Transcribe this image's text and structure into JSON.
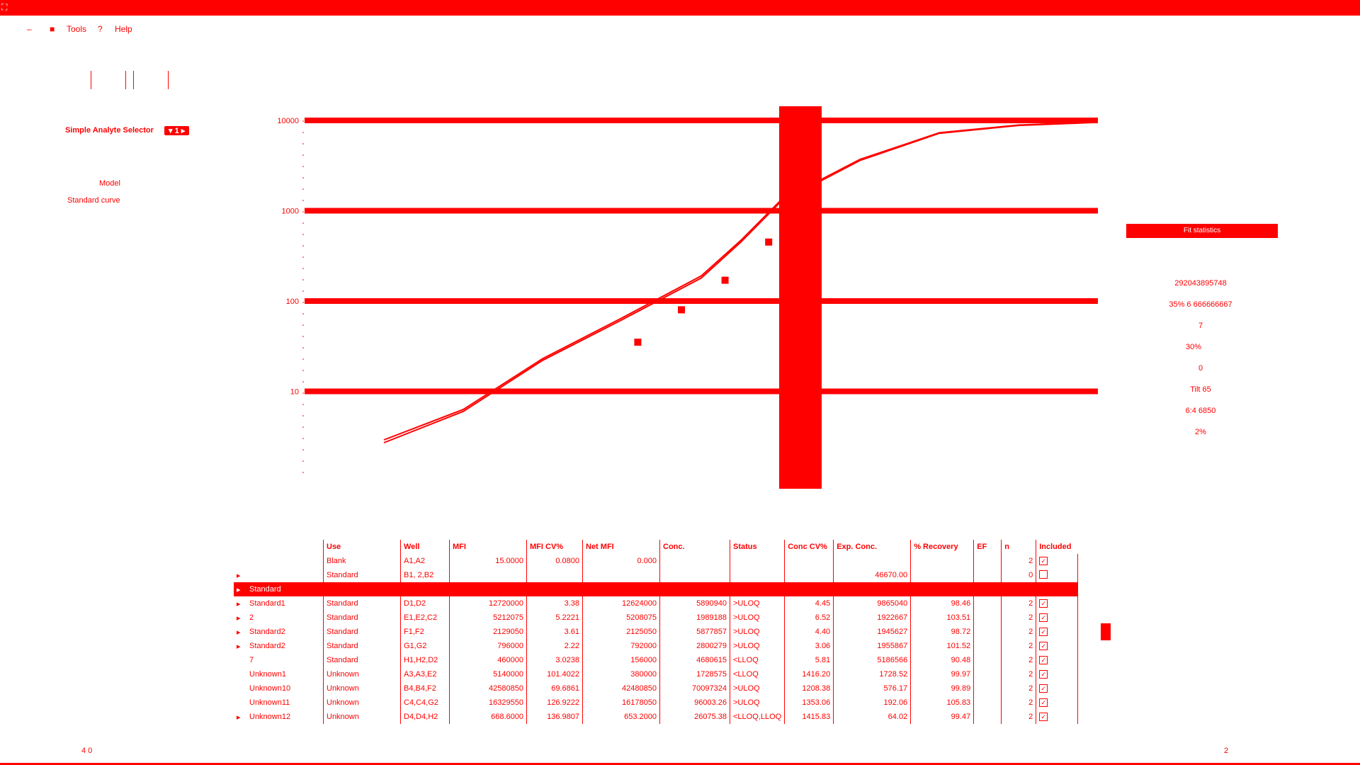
{
  "titlebar": {
    "title": ""
  },
  "menu": [
    {
      "label": "–",
      "icon": ""
    },
    {
      "label": "Tools",
      "icon": "briefcase-icon"
    },
    {
      "label": "Help",
      "icon": "question-icon"
    }
  ],
  "selector": {
    "label": "Simple Analyte Selector",
    "badge": "▾ 1 ▸"
  },
  "model": {
    "label": "Model",
    "value": "Standard curve"
  },
  "chart_data": {
    "type": "line",
    "title": "",
    "xlabel": "",
    "ylabel": "",
    "yscale": "log",
    "ylim": [
      1,
      10000
    ],
    "yticks": [
      "10000",
      "1000",
      "100",
      "10"
    ],
    "xlim": [
      0,
      10
    ],
    "series": [
      {
        "name": "",
        "x": [
          1,
          2,
          3,
          4,
          5,
          5.5,
          6,
          7,
          8,
          9,
          10
        ],
        "y": [
          2.7,
          6,
          22,
          62,
          180,
          450,
          1250,
          3600,
          7200,
          8800,
          9500
        ]
      },
      {
        "name": "",
        "x": [
          1,
          2,
          3,
          4,
          5,
          5.5,
          6,
          7,
          8,
          9,
          10
        ],
        "y": [
          2.9,
          6.3,
          23,
          65,
          190,
          470,
          1300,
          3700,
          7300,
          8900,
          9600
        ]
      }
    ],
    "points": [
      {
        "x": 4.2,
        "y": 35
      },
      {
        "x": 4.75,
        "y": 80
      },
      {
        "x": 5.3,
        "y": 170
      },
      {
        "x": 5.85,
        "y": 450
      },
      {
        "x": 6.4,
        "y": 1000
      }
    ],
    "band_x": 6.25,
    "grid": true
  },
  "side_panel": {
    "header": "Fit statistics",
    "values": [
      "292043895748",
      "35% 6 666666667",
      "7",
      "30%",
      "0",
      "Tilt 65",
      "6:4 6850",
      "2%"
    ]
  },
  "table": {
    "headers": [
      "",
      "",
      "Use",
      "Well",
      "MFI",
      "MFI CV%",
      "Net MFI",
      "Conc.",
      "Status",
      "Conc CV%",
      "Exp. Conc.",
      "% Recovery",
      "EF",
      "n",
      "Included"
    ],
    "rows": [
      {
        "exp": "",
        "name": "",
        "use": "Blank",
        "well": "A1,A2",
        "mfi": "15.0000",
        "cv": "0.0800",
        "net": "0.000",
        "conc": "",
        "status": "",
        "ccv": "",
        "exp_conc": "",
        "rec": "",
        "ef": "",
        "n": "2",
        "inc": "✓",
        "sel": false
      },
      {
        "exp": "▸",
        "name": "",
        "use": "Standard",
        "well": "B1, 2,B2",
        "mfi": "",
        "cv": "",
        "net": "",
        "conc": "",
        "status": "",
        "ccv": "",
        "exp_conc": "46670.00",
        "rec": "",
        "ef": "",
        "n": "0",
        "inc": "",
        "sel": false
      },
      {
        "exp": "▸",
        "name": "Standard",
        "use": "",
        "well": "",
        "mfi": "",
        "cv": "",
        "net": "",
        "conc": "",
        "status": "",
        "ccv": "",
        "exp_conc": "",
        "rec": "",
        "ef": "",
        "n": "",
        "inc": "",
        "sel": true
      },
      {
        "exp": "▸",
        "name": "Standard1",
        "use": "Standard",
        "well": "D1,D2",
        "mfi": "12720000",
        "cv": "3.38",
        "net": "12624000",
        "conc": "5890940",
        "status": ">ULOQ",
        "ccv": "4.45",
        "exp_conc": "9865040",
        "rec": "98.46",
        "ef": "",
        "n": "2",
        "inc": "✓",
        "sel": false
      },
      {
        "exp": "▸",
        "name": "2",
        "use": "Standard",
        "well": "E1,E2,C2",
        "mfi": "5212075",
        "cv": "5.2221",
        "net": "5208075",
        "conc": "1989188",
        "status": ">ULOQ",
        "ccv": "6.52",
        "exp_conc": "1922667",
        "rec": "103.51",
        "ef": "",
        "n": "2",
        "inc": "✓",
        "sel": false
      },
      {
        "exp": "▸",
        "name": "Standard2",
        "use": "Standard",
        "well": "F1,F2",
        "mfi": "2129050",
        "cv": "3.61",
        "net": "2125050",
        "conc": "5877857",
        "status": ">ULOQ",
        "ccv": "4.40",
        "exp_conc": "1945627",
        "rec": "98.72",
        "ef": "",
        "n": "2",
        "inc": "✓",
        "sel": false
      },
      {
        "exp": "▸",
        "name": "Standard2",
        "use": "Standard",
        "well": "G1,G2",
        "mfi": "796000",
        "cv": "2.22",
        "net": "792000",
        "conc": "2800279",
        "status": ">ULOQ",
        "ccv": "3.06",
        "exp_conc": "1955867",
        "rec": "101.52",
        "ef": "",
        "n": "2",
        "inc": "✓",
        "sel": false
      },
      {
        "exp": "",
        "name": "7",
        "use": "Standard",
        "well": "H1,H2,D2",
        "mfi": "460000",
        "cv": "3.0238",
        "net": "156000",
        "conc": "4680615",
        "status": "<LLOQ",
        "ccv": "5.81",
        "exp_conc": "5186566",
        "rec": "90.48",
        "ef": "",
        "n": "2",
        "inc": "✓",
        "sel": false
      },
      {
        "exp": "",
        "name": "Unknown1",
        "use": "Unknown",
        "well": "A3,A3,E2",
        "mfi": "5140000",
        "cv": "101.4022",
        "net": "380000",
        "conc": "1728575",
        "status": "<LLOQ",
        "ccv": "1416.20",
        "exp_conc": "1728.52",
        "rec": "99.97",
        "ef": "",
        "n": "2",
        "inc": "✓",
        "sel": false
      },
      {
        "exp": "",
        "name": "Unknown10",
        "use": "Unknown",
        "well": "B4,B4,F2",
        "mfi": "42580850",
        "cv": "69.6861",
        "net": "42480850",
        "conc": "70097324",
        "status": ">ULOQ",
        "ccv": "1208.38",
        "exp_conc": "576.17",
        "rec": "99.89",
        "ef": "",
        "n": "2",
        "inc": "✓",
        "sel": false
      },
      {
        "exp": "",
        "name": "Unknown11",
        "use": "Unknown",
        "well": "C4,C4,G2",
        "mfi": "16329550",
        "cv": "126.9222",
        "net": "16178050",
        "conc": "96003.26",
        "status": ">ULOQ",
        "ccv": "1353.06",
        "exp_conc": "192.06",
        "rec": "105.83",
        "ef": "",
        "n": "2",
        "inc": "✓",
        "sel": false
      },
      {
        "exp": "▸",
        "name": "Unknown12",
        "use": "Unknown",
        "well": "D4,D4,H2",
        "mfi": "668.6000",
        "cv": "136.9807",
        "net": "653.2000",
        "conc": "26075.38",
        "status": "<LLOQ,LLOQ",
        "ccv": "1415.83",
        "exp_conc": "64.02",
        "rec": "99.47",
        "ef": "",
        "n": "2",
        "inc": "✓",
        "sel": false
      }
    ]
  },
  "status": {
    "left": "4 0",
    "right": "2"
  }
}
